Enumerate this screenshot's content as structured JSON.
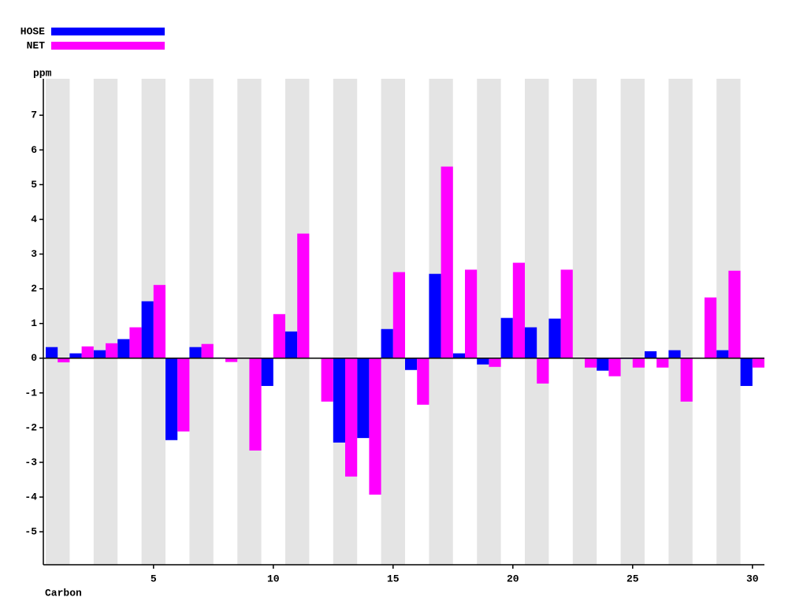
{
  "chart_data": {
    "type": "bar",
    "x_label": "Carbon",
    "y_label": "ppm",
    "x": [
      1,
      2,
      3,
      4,
      5,
      6,
      7,
      8,
      9,
      10,
      11,
      12,
      13,
      14,
      15,
      16,
      17,
      18,
      19,
      20,
      21,
      22,
      23,
      24,
      25,
      26,
      27,
      28,
      29,
      30
    ],
    "series": [
      {
        "name": "HOSE",
        "color": "#0000ff",
        "values": [
          0.32,
          0.14,
          0.23,
          0.55,
          1.64,
          -2.36,
          0.32,
          0.02,
          0,
          -0.8,
          0.77,
          0,
          -2.43,
          -2.3,
          0.84,
          -0.34,
          2.43,
          0.14,
          -0.18,
          1.16,
          0.89,
          1.14,
          0,
          -0.36,
          -0.02,
          0.2,
          0.23,
          0,
          0.23,
          -0.8
        ]
      },
      {
        "name": "NET",
        "color": "#ff00ff",
        "values": [
          -0.12,
          0.34,
          0.43,
          0.89,
          2.11,
          -2.11,
          0.41,
          -0.11,
          -2.66,
          1.27,
          3.59,
          -1.25,
          -3.41,
          -3.93,
          2.48,
          -1.34,
          5.52,
          2.55,
          -0.25,
          2.75,
          -0.73,
          2.55,
          -0.27,
          -0.52,
          -0.27,
          -0.27,
          -1.25,
          1.75,
          2.52,
          -0.27
        ]
      }
    ],
    "xlim": [
      0.5,
      30.5
    ],
    "xticks": [
      5,
      10,
      15,
      20,
      25,
      30
    ],
    "ylim": [
      -5.95,
      8.05
    ],
    "yticks": [
      -5,
      -4,
      -3,
      -2,
      -1,
      0,
      1,
      2,
      3,
      4,
      5,
      6,
      7
    ]
  }
}
